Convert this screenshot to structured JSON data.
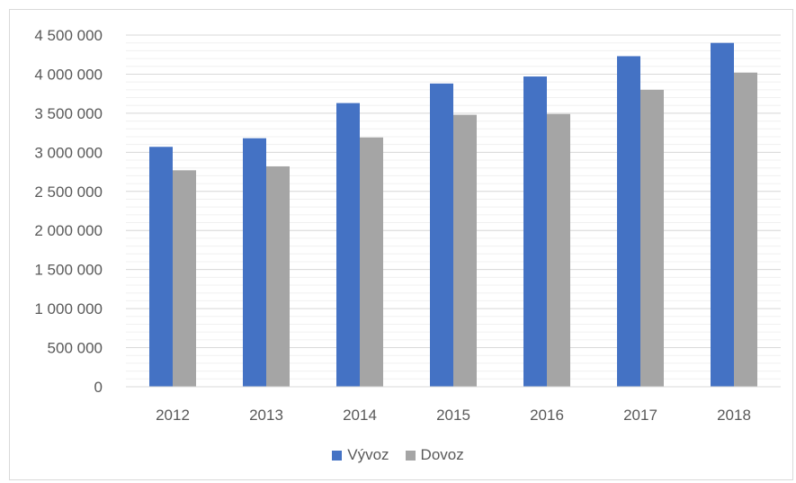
{
  "chart_data": {
    "type": "bar",
    "title": "",
    "xlabel": "",
    "ylabel": "",
    "categories": [
      "2012",
      "2013",
      "2014",
      "2015",
      "2016",
      "2017",
      "2018"
    ],
    "series": [
      {
        "name": "Vývoz",
        "color": "#4472C4",
        "values": [
          3070000,
          3180000,
          3630000,
          3880000,
          3970000,
          4230000,
          4400000
        ]
      },
      {
        "name": "Dovoz",
        "color": "#A5A5A5",
        "values": [
          2770000,
          2820000,
          3190000,
          3480000,
          3490000,
          3800000,
          4020000
        ]
      }
    ],
    "ylim": [
      0,
      4500000
    ],
    "yticks": [
      0,
      500000,
      1000000,
      1500000,
      2000000,
      2500000,
      3000000,
      3500000,
      4000000,
      4500000
    ],
    "ytick_labels": [
      "0",
      "500 000",
      "1 000 000",
      "1 500 000",
      "2 000 000",
      "2 500 000",
      "3 000 000",
      "3 500 000",
      "4 000 000",
      "4 500 000"
    ],
    "grid": true,
    "legend_position": "bottom"
  }
}
